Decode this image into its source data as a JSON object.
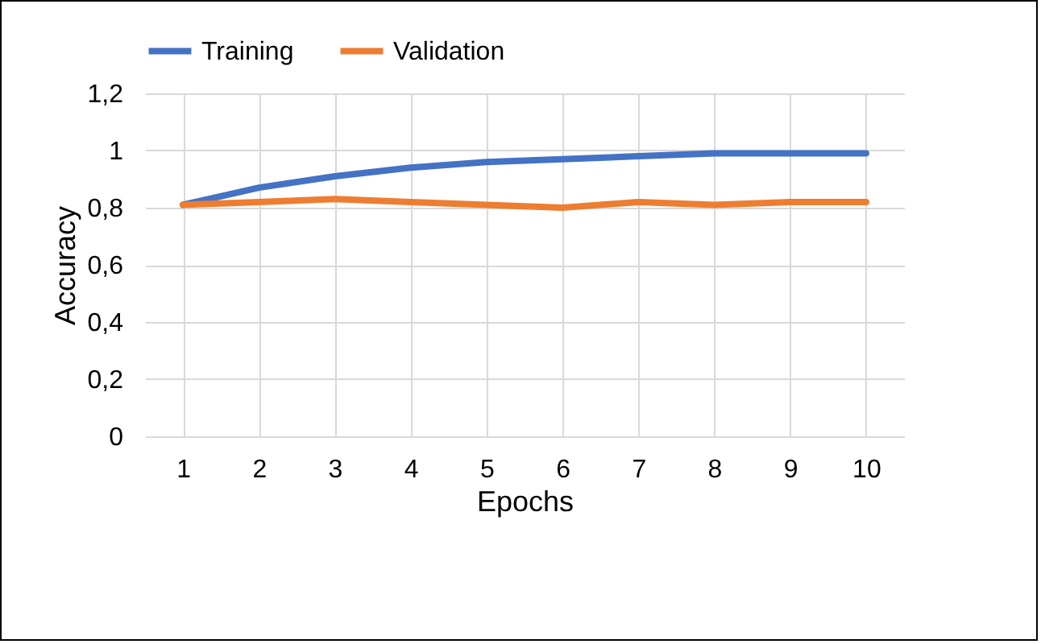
{
  "chart_data": {
    "type": "line",
    "xlabel": "Epochs",
    "ylabel": "Accuracy",
    "categories": [
      "1",
      "2",
      "3",
      "4",
      "5",
      "6",
      "7",
      "8",
      "9",
      "10"
    ],
    "series": [
      {
        "name": "Training",
        "color": "#4472c4",
        "values": [
          0.81,
          0.87,
          0.91,
          0.94,
          0.96,
          0.97,
          0.98,
          0.99,
          0.99,
          0.99
        ]
      },
      {
        "name": "Validation",
        "color": "#ed7d31",
        "values": [
          0.81,
          0.82,
          0.83,
          0.82,
          0.81,
          0.8,
          0.82,
          0.81,
          0.82,
          0.82
        ]
      }
    ],
    "ylim": [
      0,
      1.2
    ],
    "yticks": [
      0,
      {
        "value": 0.2,
        "label": "0,2"
      },
      {
        "value": 0.4,
        "label": "0,4"
      },
      {
        "value": 0.6,
        "label": "0,6"
      },
      {
        "value": 0.8,
        "label": "0,8"
      },
      1,
      {
        "value": 1.2,
        "label": "1,2"
      }
    ],
    "grid": true,
    "legend": "top",
    "marker": "none",
    "line_style": "solid"
  }
}
